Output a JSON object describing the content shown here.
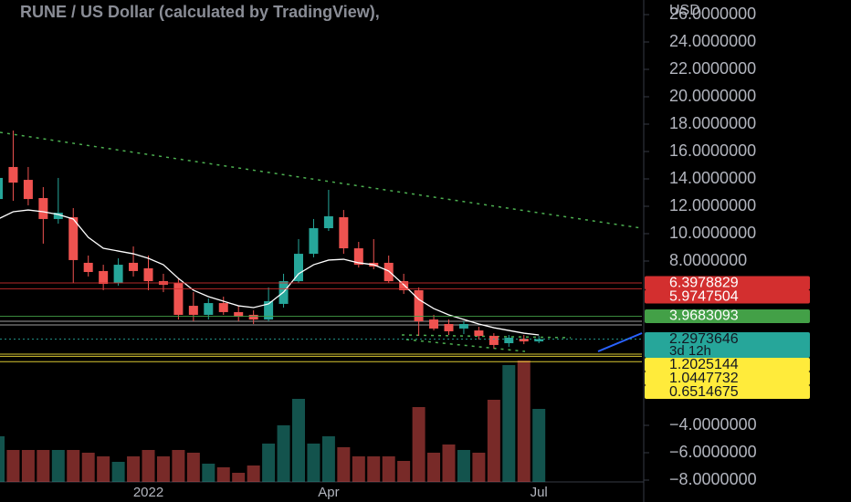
{
  "chart_data": {
    "type": "candlestick",
    "title": "RUNE / US Dollar (calculated by TradingView),",
    "currency": "USD",
    "categories": [
      null,
      null,
      null,
      null,
      null,
      null,
      null,
      null,
      null,
      null,
      "2022",
      null,
      null,
      null,
      null,
      null,
      null,
      null,
      null,
      null,
      null,
      null,
      "Apr",
      null,
      null,
      null,
      null,
      null,
      null,
      null,
      null,
      null,
      null,
      null,
      null,
      null,
      "Jul"
    ],
    "open": [
      12.53,
      14.87,
      13.93,
      12.6,
      11.07,
      11.2,
      7.87,
      7.27,
      6.4,
      7.87,
      7.47,
      6.53,
      6.4,
      4.73,
      4.07,
      4.93,
      4.27,
      4.07,
      3.73,
      4.87,
      6.53,
      8.53,
      10.4,
      11.2,
      8.93,
      7.87,
      7.87,
      6.53,
      5.87,
      3.73,
      3.4,
      3.07,
      2.93,
      2.53,
      2.0,
      2.33,
      2.13
    ],
    "high": [
      14.73,
      17.53,
      14.87,
      13.4,
      14.07,
      11.87,
      8.4,
      7.73,
      8.2,
      9.07,
      8.4,
      7.07,
      6.73,
      5.73,
      5.27,
      5.4,
      4.73,
      4.4,
      6.07,
      7.07,
      9.6,
      11.07,
      13.2,
      11.73,
      9.4,
      9.6,
      8.4,
      7.07,
      6.07,
      4.07,
      3.73,
      3.6,
      3.2,
      2.73,
      2.6,
      2.6,
      2.53
    ],
    "low": [
      12.07,
      12.4,
      12.07,
      9.27,
      10.73,
      6.4,
      6.87,
      5.87,
      6.2,
      6.87,
      5.87,
      5.73,
      3.73,
      3.6,
      3.73,
      4.07,
      3.6,
      3.4,
      3.6,
      4.6,
      6.4,
      8.27,
      10.2,
      8.53,
      7.53,
      7.4,
      6.4,
      5.6,
      2.53,
      2.93,
      2.6,
      2.67,
      2.27,
      1.6,
      1.73,
      1.93,
      2.0
    ],
    "close": [
      14.07,
      13.73,
      12.53,
      11.07,
      11.53,
      8.07,
      7.2,
      6.33,
      7.73,
      7.27,
      6.53,
      6.27,
      4.07,
      4.07,
      4.93,
      4.27,
      3.93,
      3.73,
      5.07,
      6.53,
      8.53,
      10.4,
      11.27,
      8.93,
      7.73,
      7.6,
      6.53,
      5.87,
      3.6,
      3.07,
      2.87,
      3.4,
      2.53,
      1.87,
      2.4,
      2.13,
      2.2973646
    ],
    "up_color": "#26a69a",
    "down_color": "#ef5350",
    "ema": {
      "color": "#ffffff",
      "values": [
        11.07,
        11.6,
        11.73,
        11.6,
        11.4,
        11.07,
        9.73,
        8.93,
        8.73,
        8.53,
        8.2,
        7.73,
        6.73,
        5.87,
        5.4,
        5.07,
        4.73,
        4.6,
        4.87,
        5.73,
        7.07,
        7.73,
        8.07,
        8.13,
        7.87,
        7.73,
        7.27,
        6.27,
        5.2,
        4.53,
        4.07,
        3.73,
        3.4,
        3.13,
        2.93,
        2.73,
        2.6
      ]
    },
    "volume": {
      "values": [
        50,
        35,
        35,
        35,
        35,
        35,
        32,
        28,
        22,
        28,
        35,
        28,
        35,
        32,
        20,
        16,
        10,
        18,
        42,
        62,
        91,
        42,
        50,
        38,
        28,
        28,
        28,
        23,
        82,
        32,
        41,
        35,
        32,
        90,
        128,
        133,
        80
      ]
    },
    "ylim": [
      -8.133,
      27.067
    ],
    "yticks": [
      {
        "value": 26,
        "label": "26.0000000"
      },
      {
        "value": 24,
        "label": "24.0000000"
      },
      {
        "value": 22,
        "label": "22.0000000"
      },
      {
        "value": 20,
        "label": "20.0000000"
      },
      {
        "value": 18,
        "label": "18.0000000"
      },
      {
        "value": 16,
        "label": "16.0000000"
      },
      {
        "value": 14,
        "label": "14.0000000"
      },
      {
        "value": 12,
        "label": "12.0000000"
      },
      {
        "value": 10,
        "label": "10.0000000"
      },
      {
        "value": 8,
        "label": "8.0000000"
      },
      {
        "value": -4,
        "label": "−4.0000000"
      },
      {
        "value": -6,
        "label": "−6.0000000"
      },
      {
        "value": -8,
        "label": "−8.0000000"
      }
    ],
    "price_lines": [
      {
        "value": 6.3978829,
        "color": "#d32f2f",
        "text_color": "#ffffff"
      },
      {
        "value": 5.9747504,
        "color": "#d32f2f",
        "text_color": "#ffffff"
      },
      {
        "value": 3.9683093,
        "color": "#43a047",
        "text_color": "#ffffff"
      },
      {
        "value": 2.2973646,
        "color": "#26a69a",
        "text_color": "#131722"
      },
      {
        "value": 1.2025144,
        "color": "#ffeb3b",
        "text_color": "#131722"
      },
      {
        "value": 1.0447732,
        "color": "#ffeb3b",
        "text_color": "#131722"
      },
      {
        "value": 0.6514675,
        "color": "#ffeb3b",
        "text_color": "#131722"
      }
    ],
    "countdown": "3d 12h"
  }
}
